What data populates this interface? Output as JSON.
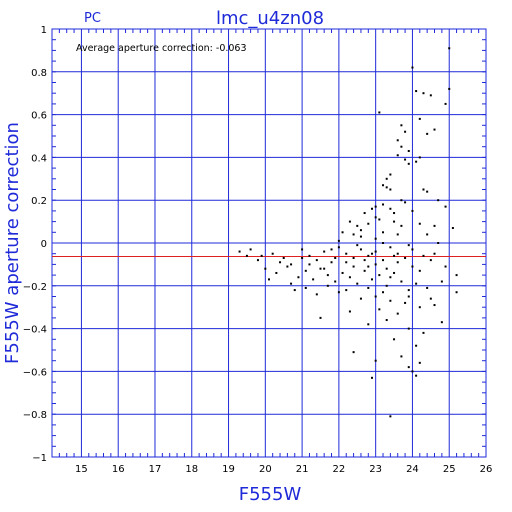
{
  "chart_data": {
    "type": "scatter",
    "tag": "PC",
    "title": "lmc_u4zn08",
    "xlabel": "F555W",
    "ylabel": "F555W aperture correction",
    "annotation": "Average aperture correction:  -0.063",
    "xlim": [
      14.2,
      26
    ],
    "ylim": [
      -1,
      1
    ],
    "x_ticks": [
      15,
      16,
      17,
      18,
      19,
      20,
      21,
      22,
      23,
      24,
      25,
      26
    ],
    "y_ticks": [
      1,
      0.8,
      0.6,
      0.4,
      0.2,
      0,
      -0.2,
      -0.4,
      -0.6,
      -0.8,
      -1
    ],
    "x_tick_labels": [
      "15",
      "16",
      "17",
      "18",
      "19",
      "20",
      "21",
      "22",
      "23",
      "24",
      "25",
      "26"
    ],
    "y_tick_labels": [
      "1",
      "0.8",
      "0.6",
      "0.4",
      "0.2",
      "0",
      "−0.2",
      "−0.4",
      "−0.6",
      "−0.8",
      "−1"
    ],
    "grid": true,
    "average_line": -0.063,
    "colors": {
      "axis": "#1f2ad8",
      "grid": "#1f2ad8",
      "points": "#000000",
      "average_line": "#e02020"
    },
    "points": [
      [
        25.0,
        0.91
      ],
      [
        25.0,
        0.72
      ],
      [
        24.9,
        0.65
      ],
      [
        24.0,
        0.82
      ],
      [
        24.1,
        0.71
      ],
      [
        24.3,
        0.7
      ],
      [
        24.5,
        0.69
      ],
      [
        24.2,
        0.58
      ],
      [
        24.6,
        0.53
      ],
      [
        24.4,
        0.51
      ],
      [
        23.7,
        0.55
      ],
      [
        23.8,
        0.52
      ],
      [
        23.6,
        0.48
      ],
      [
        23.7,
        0.45
      ],
      [
        23.9,
        0.43
      ],
      [
        23.6,
        0.41
      ],
      [
        23.8,
        0.39
      ],
      [
        23.9,
        0.37
      ],
      [
        24.1,
        0.38
      ],
      [
        24.2,
        0.4
      ],
      [
        24.3,
        0.25
      ],
      [
        24.4,
        0.24
      ],
      [
        23.1,
        0.61
      ],
      [
        23.4,
        0.32
      ],
      [
        23.3,
        0.3
      ],
      [
        23.2,
        0.27
      ],
      [
        23.4,
        0.25
      ],
      [
        23.3,
        0.26
      ],
      [
        23.2,
        0.18
      ],
      [
        23.0,
        0.17
      ],
      [
        23.4,
        0.16
      ],
      [
        23.8,
        0.19
      ],
      [
        24.0,
        0.15
      ],
      [
        24.7,
        0.2
      ],
      [
        24.9,
        0.17
      ],
      [
        25.1,
        0.07
      ],
      [
        24.6,
        0.08
      ],
      [
        22.7,
        0.14
      ],
      [
        22.9,
        0.16
      ],
      [
        23.0,
        0.12
      ],
      [
        22.3,
        0.1
      ],
      [
        22.5,
        0.08
      ],
      [
        22.8,
        0.09
      ],
      [
        23.1,
        0.11
      ],
      [
        23.5,
        0.1
      ],
      [
        23.7,
        0.08
      ],
      [
        24.2,
        0.09
      ],
      [
        22.1,
        0.05
      ],
      [
        22.4,
        0.04
      ],
      [
        22.6,
        0.03
      ],
      [
        23.2,
        0.05
      ],
      [
        23.6,
        0.04
      ],
      [
        24.4,
        0.04
      ],
      [
        19.3,
        -0.04
      ],
      [
        19.5,
        -0.06
      ],
      [
        19.8,
        -0.08
      ],
      [
        20.2,
        -0.05
      ],
      [
        20.5,
        -0.07
      ],
      [
        20.7,
        -0.1
      ],
      [
        21.0,
        -0.03
      ],
      [
        21.2,
        -0.06
      ],
      [
        21.4,
        -0.08
      ],
      [
        21.6,
        -0.04
      ],
      [
        21.8,
        -0.09
      ],
      [
        22.0,
        -0.02
      ],
      [
        22.2,
        -0.05
      ],
      [
        22.4,
        -0.07
      ],
      [
        22.6,
        -0.03
      ],
      [
        22.8,
        -0.06
      ],
      [
        23.0,
        -0.04
      ],
      [
        23.2,
        -0.08
      ],
      [
        23.4,
        -0.02
      ],
      [
        23.6,
        -0.05
      ],
      [
        23.8,
        -0.07
      ],
      [
        24.0,
        -0.03
      ],
      [
        24.3,
        -0.06
      ],
      [
        24.6,
        -0.05
      ],
      [
        20.0,
        -0.12
      ],
      [
        20.3,
        -0.14
      ],
      [
        20.6,
        -0.11
      ],
      [
        20.9,
        -0.16
      ],
      [
        21.1,
        -0.13
      ],
      [
        21.3,
        -0.17
      ],
      [
        21.5,
        -0.12
      ],
      [
        21.7,
        -0.15
      ],
      [
        21.9,
        -0.18
      ],
      [
        22.1,
        -0.14
      ],
      [
        22.3,
        -0.16
      ],
      [
        22.5,
        -0.19
      ],
      [
        22.7,
        -0.13
      ],
      [
        22.9,
        -0.17
      ],
      [
        23.1,
        -0.15
      ],
      [
        23.3,
        -0.2
      ],
      [
        23.5,
        -0.14
      ],
      [
        23.7,
        -0.18
      ],
      [
        23.9,
        -0.22
      ],
      [
        24.1,
        -0.19
      ],
      [
        24.4,
        -0.21
      ],
      [
        24.8,
        -0.18
      ],
      [
        25.2,
        -0.23
      ],
      [
        20.8,
        -0.22
      ],
      [
        21.4,
        -0.24
      ],
      [
        22.0,
        -0.23
      ],
      [
        22.6,
        -0.26
      ],
      [
        23.0,
        -0.25
      ],
      [
        23.4,
        -0.27
      ],
      [
        23.8,
        -0.28
      ],
      [
        24.6,
        -0.29
      ],
      [
        22.3,
        -0.32
      ],
      [
        23.1,
        -0.31
      ],
      [
        23.6,
        -0.33
      ],
      [
        24.2,
        -0.3
      ],
      [
        21.5,
        -0.35
      ],
      [
        22.8,
        -0.38
      ],
      [
        23.3,
        -0.36
      ],
      [
        23.9,
        -0.4
      ],
      [
        24.3,
        -0.42
      ],
      [
        24.8,
        -0.37
      ],
      [
        23.5,
        -0.45
      ],
      [
        24.1,
        -0.48
      ],
      [
        22.4,
        -0.51
      ],
      [
        23.0,
        -0.55
      ],
      [
        23.7,
        -0.53
      ],
      [
        24.2,
        -0.56
      ],
      [
        24.0,
        -0.6
      ],
      [
        24.1,
        -0.62
      ],
      [
        23.9,
        -0.58
      ],
      [
        22.9,
        -0.63
      ],
      [
        23.4,
        -0.81
      ],
      [
        25.2,
        -0.15
      ],
      [
        19.6,
        -0.03
      ],
      [
        19.9,
        -0.06
      ],
      [
        20.4,
        -0.09
      ],
      [
        21.0,
        -0.07
      ],
      [
        21.8,
        -0.03
      ],
      [
        22.5,
        -0.01
      ],
      [
        23.2,
        0.0
      ],
      [
        23.9,
        -0.01
      ],
      [
        24.7,
        0.0
      ],
      [
        22.0,
        0.01
      ],
      [
        22.2,
        -0.09
      ],
      [
        22.4,
        -0.11
      ],
      [
        22.7,
        -0.08
      ],
      [
        23.0,
        -0.1
      ],
      [
        23.3,
        -0.12
      ],
      [
        23.6,
        -0.09
      ],
      [
        24.0,
        -0.11
      ],
      [
        24.5,
        -0.08
      ],
      [
        21.2,
        -0.1
      ],
      [
        21.6,
        -0.12
      ],
      [
        21.9,
        -0.07
      ],
      [
        22.9,
        -0.05
      ],
      [
        23.5,
        -0.06
      ],
      [
        24.2,
        -0.13
      ],
      [
        24.9,
        -0.11
      ],
      [
        20.1,
        -0.17
      ],
      [
        20.7,
        -0.19
      ],
      [
        21.1,
        -0.21
      ],
      [
        21.7,
        -0.2
      ],
      [
        22.2,
        -0.22
      ],
      [
        22.8,
        -0.21
      ],
      [
        23.2,
        -0.23
      ],
      [
        23.9,
        -0.25
      ],
      [
        24.5,
        -0.26
      ],
      [
        23.7,
        0.2
      ],
      [
        23.5,
        0.14
      ],
      [
        23.0,
        0.02
      ],
      [
        22.6,
        0.06
      ],
      [
        22.8,
        -0.11
      ],
      [
        23.4,
        -0.16
      ]
    ]
  }
}
